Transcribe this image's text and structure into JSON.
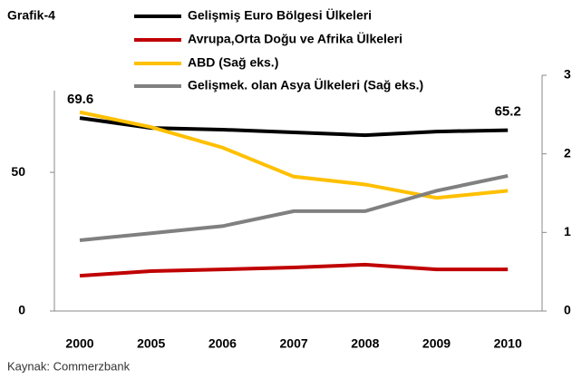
{
  "chart_data": {
    "type": "line",
    "title": "Grafik-4",
    "source": "Kaynak: Commerzbank",
    "categories": [
      "2000",
      "2005",
      "2006",
      "2007",
      "2008",
      "2009",
      "2010"
    ],
    "series": [
      {
        "name": "Gelişmiş Euro Bölgesi Ülkeleri",
        "color": "#000000",
        "values": [
          69.6,
          66,
          65.4,
          64.4,
          63.4,
          64.7,
          65.2
        ]
      },
      {
        "name": "Avrupa,Orta Doğu ve Afrika Ülkeleri",
        "color": "#c00000",
        "values": [
          12.7,
          14.4,
          15,
          15.7,
          16.7,
          15,
          15
        ]
      },
      {
        "name": "ABD (Sağ eks.)",
        "color": "#ffc000",
        "axis": "y2",
        "values": [
          2.53,
          2.34,
          2.08,
          1.71,
          1.61,
          1.44,
          1.53
        ]
      },
      {
        "name": "Gelişmek. olan Asya Ülkeleri (Sağ eks.)",
        "color": "#808080",
        "axis": "y2",
        "values": [
          0.9,
          0.99,
          1.08,
          1.27,
          1.27,
          1.53,
          1.72
        ]
      }
    ],
    "ylim": [
      0,
      85
    ],
    "yticks": [
      0,
      50
    ],
    "y2lim": [
      0,
      3
    ],
    "y2ticks": [
      0,
      1,
      2,
      3
    ],
    "legend": "top"
  }
}
